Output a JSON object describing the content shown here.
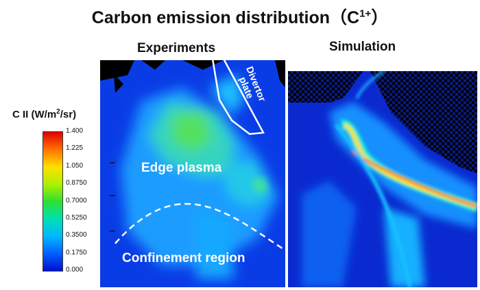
{
  "title": {
    "text": "Carbon emission distribution（C",
    "sup": "1+",
    "close": "）"
  },
  "panels": {
    "experiments": {
      "title": "Experiments"
    },
    "simulation": {
      "title": "Simulation"
    }
  },
  "colorbar": {
    "label_pre": "C II (W/m",
    "label_sup": "2",
    "label_post": "/sr)",
    "ticks": [
      "1.400",
      "1.225",
      "1.050",
      "0.8750",
      "0.7000",
      "0.5250",
      "0.3500",
      "0.1750",
      "0.000"
    ],
    "colors": [
      "#e00000",
      "#ff7000",
      "#ffe000",
      "#b0f000",
      "#30e030",
      "#00e0b0",
      "#00b8ff",
      "#0060ff",
      "#0010d0"
    ]
  },
  "annotations": {
    "divertor_plate": "Divertor\nplate",
    "edge_plasma": "Edge plasma",
    "confinement_region": "Confinement region"
  }
}
